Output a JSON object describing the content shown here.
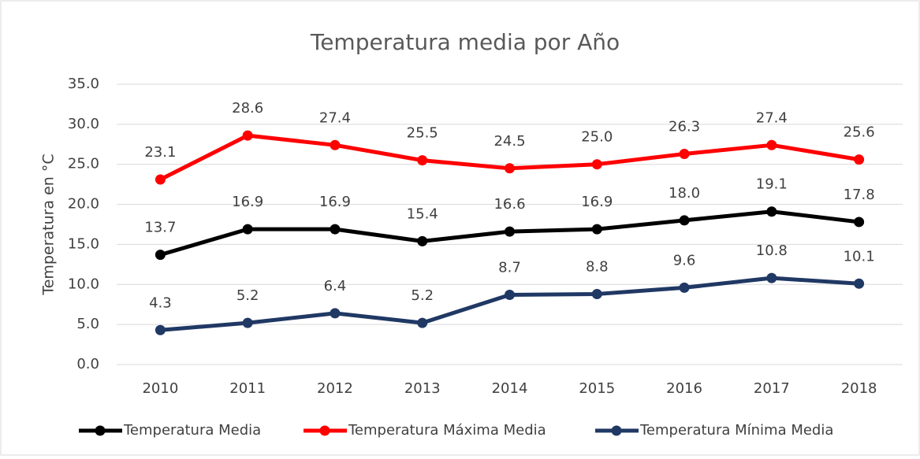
{
  "chart_data": {
    "type": "line",
    "title": "Temperatura media por Año",
    "y_label": "Temperatura en °C",
    "categories": [
      "2010",
      "2011",
      "2012",
      "2013",
      "2014",
      "2015",
      "2016",
      "2017",
      "2018"
    ],
    "series": [
      {
        "name": "Temperatura Media",
        "color": "#000000",
        "values": [
          13.7,
          16.9,
          16.9,
          15.4,
          16.6,
          16.9,
          18.0,
          19.1,
          17.8
        ],
        "value_labels": [
          "13.7",
          "16.9",
          "16.9",
          "15.4",
          "16.6",
          "16.9",
          "18.0",
          "19.1",
          "17.8"
        ]
      },
      {
        "name": "Temperatura Máxima Media",
        "color": "#ff0000",
        "values": [
          23.1,
          28.6,
          27.4,
          25.5,
          24.5,
          25.0,
          26.3,
          27.4,
          25.6
        ],
        "value_labels": [
          "23.1",
          "28.6",
          "27.4",
          "25.5",
          "24.5",
          "25.0",
          "26.3",
          "27.4",
          "25.6"
        ]
      },
      {
        "name": "Temperatura Mínima Media",
        "color": "#203864",
        "values": [
          4.3,
          5.2,
          6.4,
          5.2,
          8.7,
          8.8,
          9.6,
          10.8,
          10.1
        ],
        "value_labels": [
          "4.3",
          "5.2",
          "6.4",
          "5.2",
          "8.7",
          "8.8",
          "9.6",
          "10.8",
          "10.1"
        ]
      }
    ],
    "ylim": [
      0,
      35
    ],
    "yticks": [
      {
        "value": 0,
        "label": "0.0"
      },
      {
        "value": 5,
        "label": "5.0"
      },
      {
        "value": 10,
        "label": "10.0"
      },
      {
        "value": 15,
        "label": "15.0"
      },
      {
        "value": 20,
        "label": "20.0"
      },
      {
        "value": 25,
        "label": "25.0"
      },
      {
        "value": 30,
        "label": "30.0"
      },
      {
        "value": 35,
        "label": "35.0"
      }
    ],
    "grid": true,
    "legend": "bottom"
  }
}
